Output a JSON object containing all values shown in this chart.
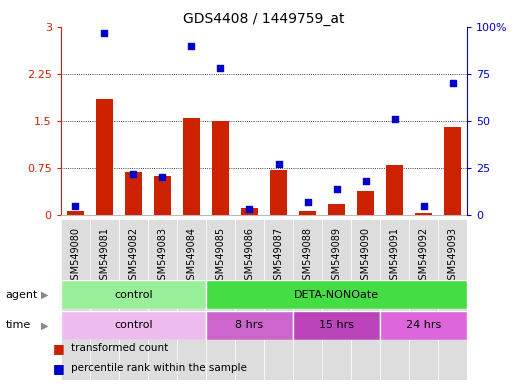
{
  "title": "GDS4408 / 1449759_at",
  "samples": [
    "GSM549080",
    "GSM549081",
    "GSM549082",
    "GSM549083",
    "GSM549084",
    "GSM549085",
    "GSM549086",
    "GSM549087",
    "GSM549088",
    "GSM549089",
    "GSM549090",
    "GSM549091",
    "GSM549092",
    "GSM549093"
  ],
  "transformed_count": [
    0.07,
    1.85,
    0.68,
    0.62,
    1.55,
    1.5,
    0.12,
    0.72,
    0.07,
    0.18,
    0.38,
    0.8,
    0.03,
    1.4
  ],
  "percentile_rank": [
    5,
    97,
    22,
    20,
    90,
    78,
    3,
    27,
    7,
    14,
    18,
    51,
    5,
    70
  ],
  "ylim_left": [
    0,
    3
  ],
  "ylim_right": [
    0,
    100
  ],
  "yticks_left": [
    0,
    0.75,
    1.5,
    2.25,
    3
  ],
  "yticks_right": [
    0,
    25,
    50,
    75,
    100
  ],
  "ytick_labels_left": [
    "0",
    "0.75",
    "1.5",
    "2.25",
    "3"
  ],
  "ytick_labels_right": [
    "0",
    "25",
    "50",
    "75",
    "100%"
  ],
  "bar_color": "#cc2200",
  "dot_color": "#0000cc",
  "agent_groups": [
    {
      "label": "control",
      "start": 0,
      "end": 5,
      "color": "#99ee99"
    },
    {
      "label": "DETA-NONOate",
      "start": 5,
      "end": 14,
      "color": "#44dd44"
    }
  ],
  "time_groups": [
    {
      "label": "control",
      "start": 0,
      "end": 5,
      "color": "#eebBee"
    },
    {
      "label": "8 hrs",
      "start": 5,
      "end": 8,
      "color": "#cc66cc"
    },
    {
      "label": "15 hrs",
      "start": 8,
      "end": 11,
      "color": "#bb44bb"
    },
    {
      "label": "24 hrs",
      "start": 11,
      "end": 14,
      "color": "#dd66dd"
    }
  ],
  "legend_items": [
    {
      "label": "transformed count",
      "color": "#cc2200"
    },
    {
      "label": "percentile rank within the sample",
      "color": "#0000cc"
    }
  ],
  "left_axis_color": "#cc2200",
  "right_axis_color": "#0000cc",
  "xtick_bg_color": "#dddddd",
  "plot_bg_color": "#ffffff"
}
